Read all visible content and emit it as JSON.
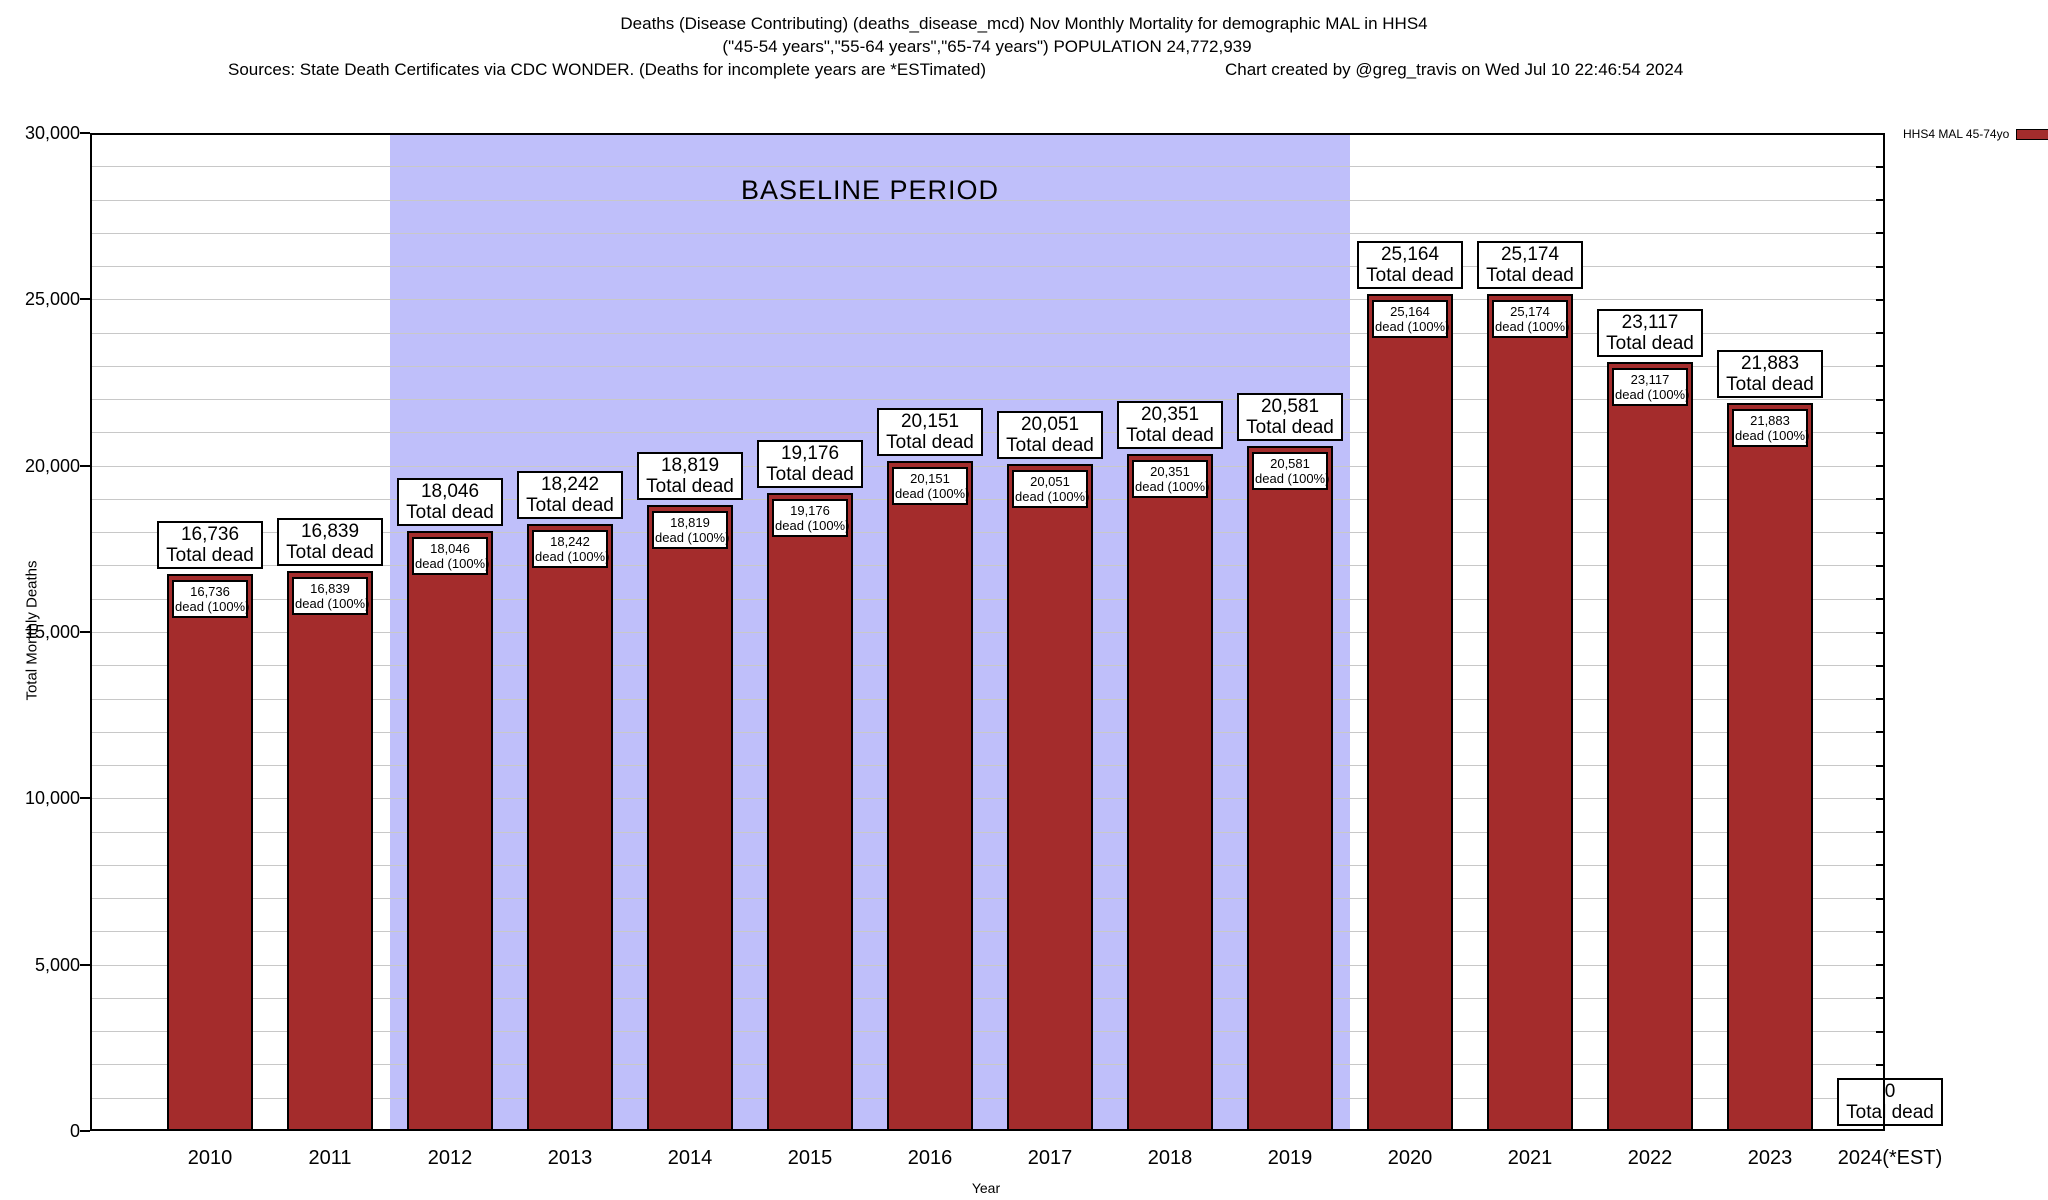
{
  "header": {
    "title_line1": "Deaths (Disease Contributing) (deaths_disease_mcd) Nov Monthly Mortality for demographic MAL in HHS4",
    "title_line2": "(\"45-54 years\",\"55-64 years\",\"65-74 years\") POPULATION 24,772,939",
    "sources": "Sources: State Death Certificates via CDC WONDER. (Deaths for incomplete years are *ESTimated)",
    "credit": "Chart created by @greg_travis on Wed Jul 10 22:46:54 2024"
  },
  "chart_data": {
    "type": "bar",
    "title": "Deaths (Disease Contributing) (deaths_disease_mcd) Nov Monthly Mortality for demographic MAL in HHS4",
    "subtitle": "(\"45-54 years\",\"55-64 years\",\"65-74 years\") POPULATION 24,772,939",
    "xlabel": "Year",
    "ylabel": "Total Monthly Deaths",
    "ylim": [
      0,
      30000
    ],
    "ytick_major_interval": 5000,
    "ytick_minor_interval": 1000,
    "ytick_labels": [
      "0",
      "5,000",
      "10,000",
      "15,000",
      "20,000",
      "25,000",
      "30,000"
    ],
    "grid": "horizontal gridlines every 1,000",
    "legend_position": "top-right outside plot",
    "legend_label": "HHS4 MAL 45-74yo",
    "categories": [
      "2010",
      "2011",
      "2012",
      "2013",
      "2014",
      "2015",
      "2016",
      "2017",
      "2018",
      "2019",
      "2020",
      "2021",
      "2022",
      "2023",
      "2024(*EST)"
    ],
    "values": [
      16736,
      16839,
      18046,
      18242,
      18819,
      19176,
      20151,
      20051,
      20351,
      20581,
      25164,
      25174,
      23117,
      21883,
      0
    ],
    "bar_color": "#A42C2C",
    "bar_border_color": "#000000",
    "outer_label_suffix": "Total dead",
    "inner_label_suffix": "dead (100%)",
    "baseline_band": {
      "label": "BASELINE PERIOD",
      "from_category": "2012",
      "to_category": "2019",
      "color": "#BFBFFA"
    }
  },
  "colors": {
    "background": "#FFFFFF",
    "gridline": "#C8C8C8",
    "text": "#000000",
    "bar": "#A42C2C",
    "band": "#BFBFFA"
  }
}
